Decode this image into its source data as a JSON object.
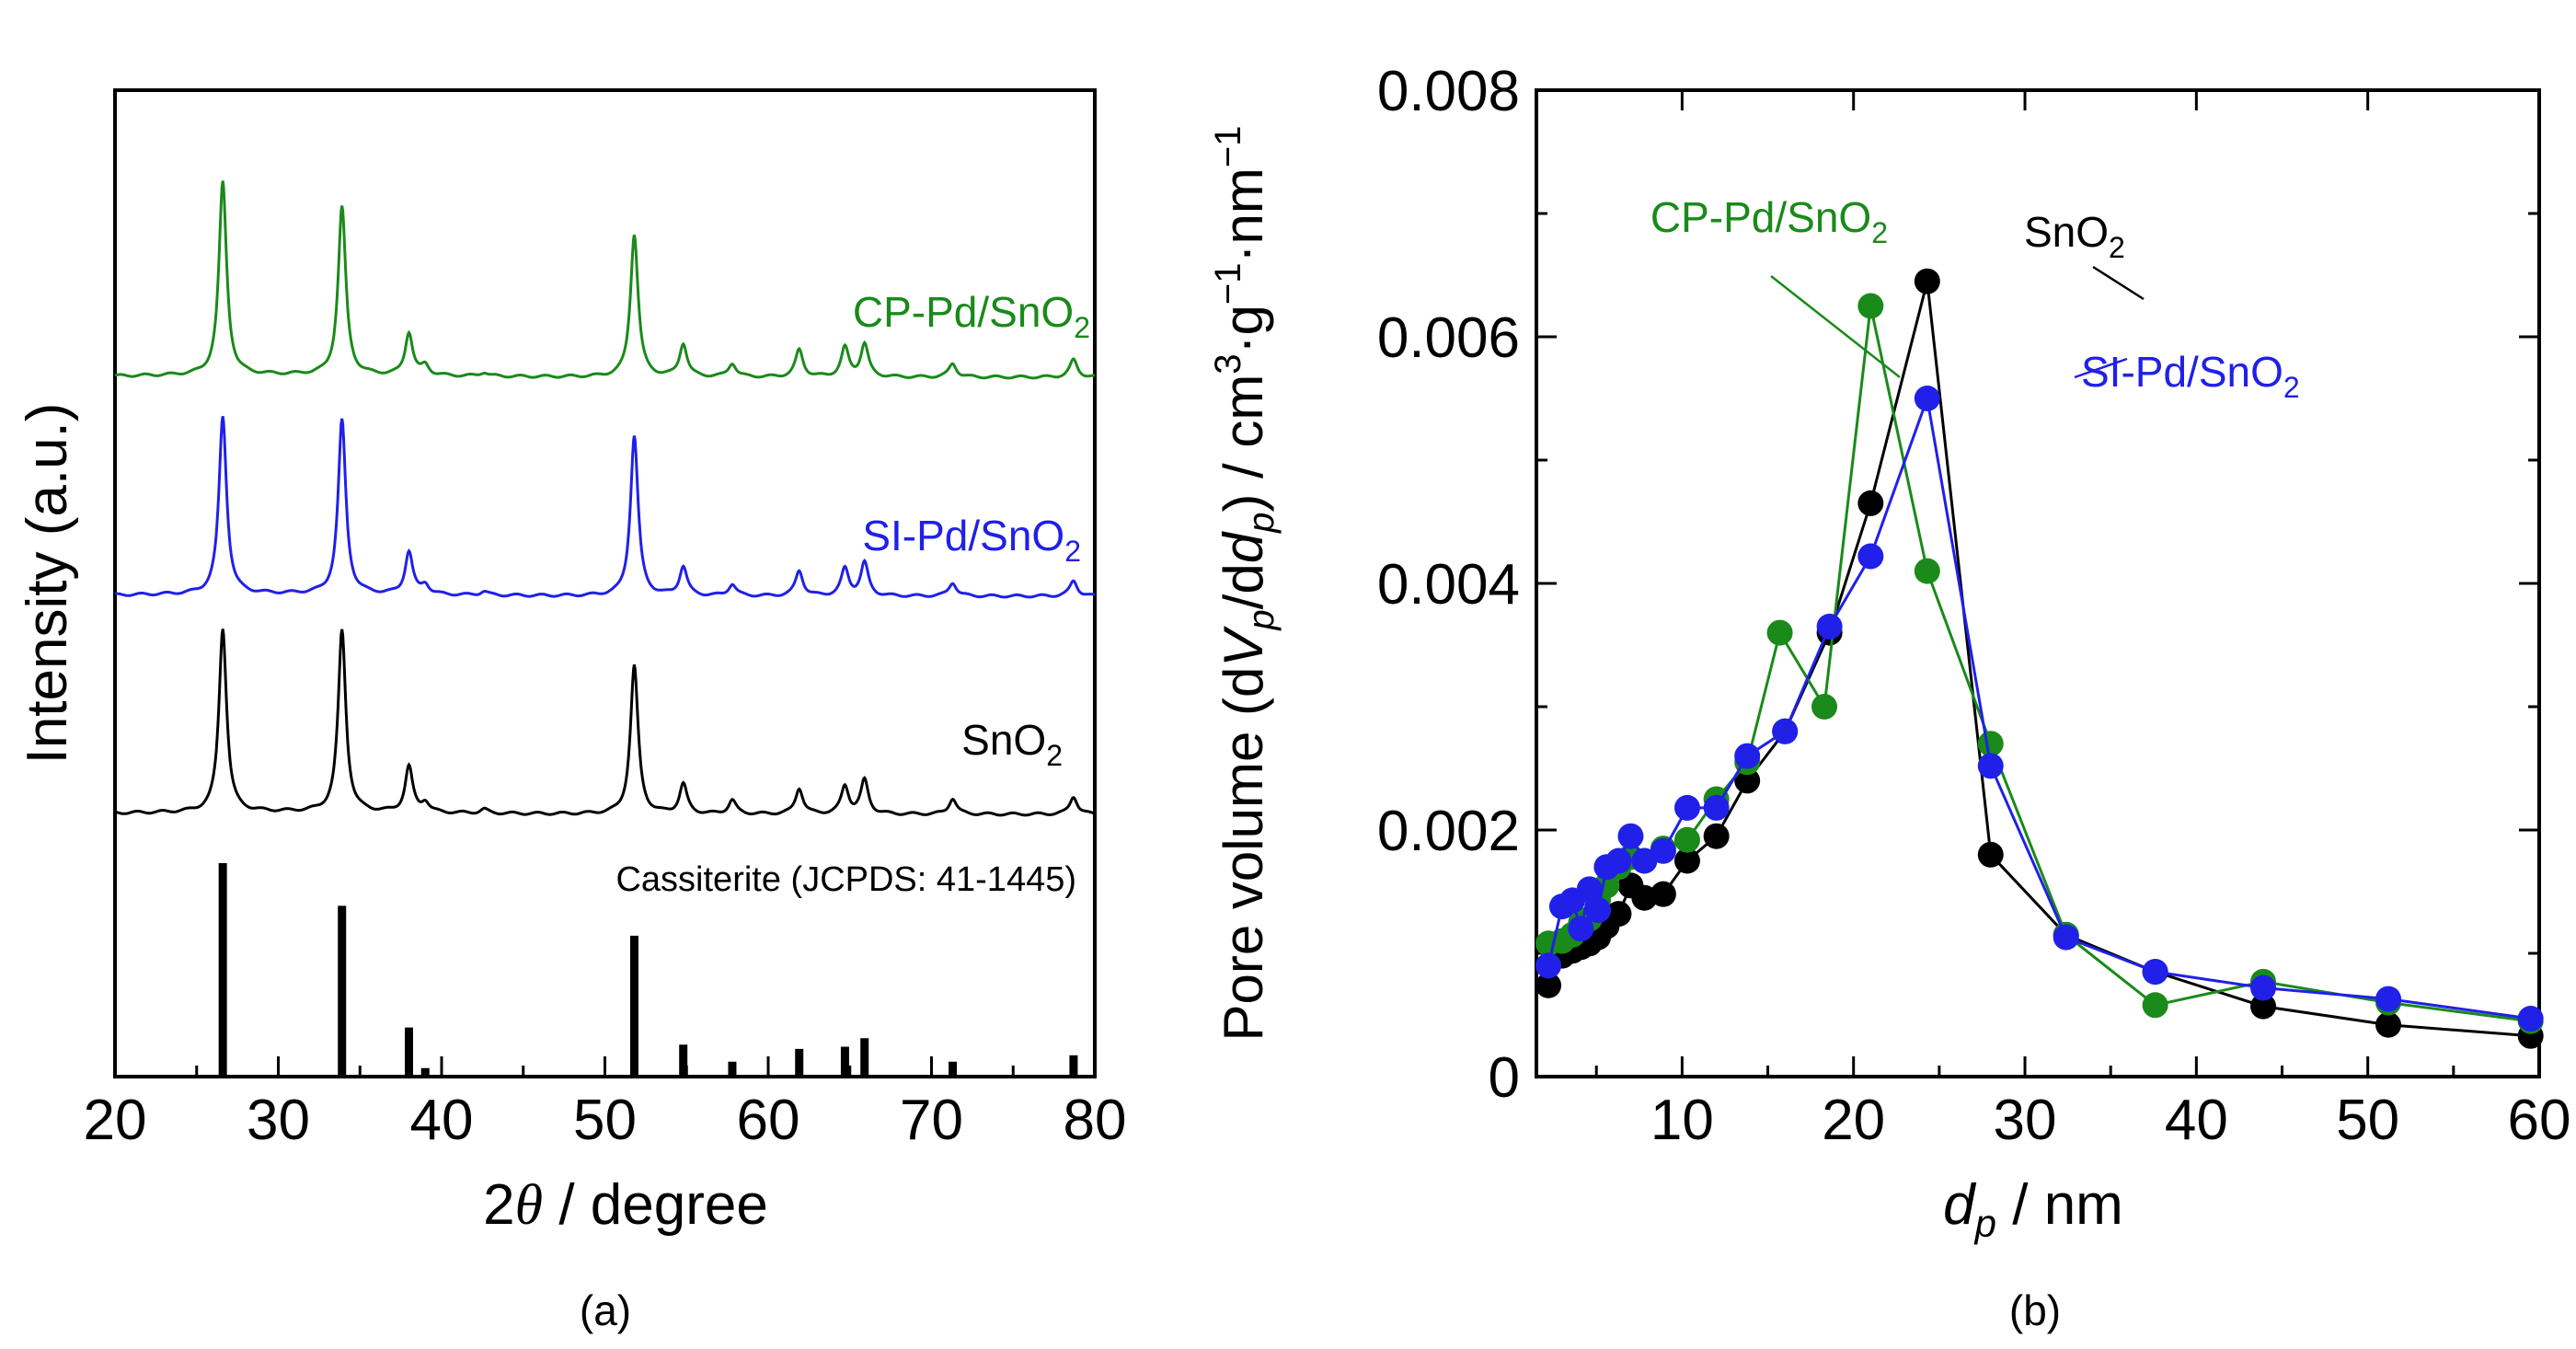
{
  "chart_data": [
    {
      "type": "line",
      "panel_label": "(a)",
      "xlabel_italic": "θ",
      "xlabel_prefix": "2",
      "xlabel_suffix": " / degree",
      "ylabel": "Intensity (a.u.)",
      "xlim": [
        20,
        80
      ],
      "x_ticks": [
        20,
        30,
        40,
        50,
        60,
        70,
        80
      ],
      "grid": false,
      "series": [
        {
          "label_main": "CP-Pd/SnO",
          "label_sub": "2",
          "color": "#1a8a1a",
          "peaks": [
            {
              "x": 26.6,
              "h": 1.0
            },
            {
              "x": 33.9,
              "h": 0.87
            },
            {
              "x": 38.0,
              "h": 0.22
            },
            {
              "x": 39.0,
              "h": 0.05
            },
            {
              "x": 42.6,
              "h": 0.02
            },
            {
              "x": 51.8,
              "h": 0.74
            },
            {
              "x": 54.8,
              "h": 0.17
            },
            {
              "x": 57.8,
              "h": 0.07
            },
            {
              "x": 61.9,
              "h": 0.14
            },
            {
              "x": 64.7,
              "h": 0.15
            },
            {
              "x": 65.9,
              "h": 0.17
            },
            {
              "x": 71.3,
              "h": 0.07
            },
            {
              "x": 78.7,
              "h": 0.09
            }
          ]
        },
        {
          "label_main": "SI-Pd/SnO",
          "label_sub": "2",
          "color": "#2020e8",
          "peaks": [
            {
              "x": 26.6,
              "h": 0.92
            },
            {
              "x": 33.9,
              "h": 0.9
            },
            {
              "x": 38.0,
              "h": 0.22
            },
            {
              "x": 39.0,
              "h": 0.05
            },
            {
              "x": 42.6,
              "h": 0.02
            },
            {
              "x": 51.8,
              "h": 0.83
            },
            {
              "x": 54.8,
              "h": 0.15
            },
            {
              "x": 57.8,
              "h": 0.06
            },
            {
              "x": 61.9,
              "h": 0.13
            },
            {
              "x": 64.7,
              "h": 0.14
            },
            {
              "x": 65.9,
              "h": 0.17
            },
            {
              "x": 71.3,
              "h": 0.07
            },
            {
              "x": 78.7,
              "h": 0.08
            }
          ]
        },
        {
          "label_main": "SnO",
          "label_sub": "2",
          "color": "#000000",
          "peaks": [
            {
              "x": 26.6,
              "h": 0.93
            },
            {
              "x": 33.9,
              "h": 0.92
            },
            {
              "x": 38.0,
              "h": 0.23
            },
            {
              "x": 39.0,
              "h": 0.05
            },
            {
              "x": 42.6,
              "h": 0.02
            },
            {
              "x": 51.8,
              "h": 0.75
            },
            {
              "x": 54.8,
              "h": 0.15
            },
            {
              "x": 57.8,
              "h": 0.07
            },
            {
              "x": 61.9,
              "h": 0.13
            },
            {
              "x": 64.7,
              "h": 0.14
            },
            {
              "x": 65.9,
              "h": 0.17
            },
            {
              "x": 71.3,
              "h": 0.08
            },
            {
              "x": 78.7,
              "h": 0.09
            }
          ]
        }
      ],
      "reference": {
        "label": "Cassiterite (JCPDS: 41-1445)",
        "color": "#000000",
        "sticks": [
          {
            "x": 26.6,
            "h": 1.0
          },
          {
            "x": 33.9,
            "h": 0.8
          },
          {
            "x": 38.0,
            "h": 0.23
          },
          {
            "x": 39.0,
            "h": 0.04
          },
          {
            "x": 51.8,
            "h": 0.66
          },
          {
            "x": 54.8,
            "h": 0.15
          },
          {
            "x": 57.8,
            "h": 0.07
          },
          {
            "x": 61.9,
            "h": 0.13
          },
          {
            "x": 64.7,
            "h": 0.14
          },
          {
            "x": 65.9,
            "h": 0.18
          },
          {
            "x": 71.3,
            "h": 0.07
          },
          {
            "x": 78.7,
            "h": 0.1
          }
        ]
      }
    },
    {
      "type": "line",
      "panel_label": "(b)",
      "xlabel_italic": "d",
      "xlabel_sub": "p",
      "xlabel_suffix": " / nm",
      "ylabel_text": "Pore volume (dV/dd) / cm³·g⁻¹·nm⁻¹",
      "xlim": [
        1.5,
        60
      ],
      "ylim": [
        0,
        0.008
      ],
      "x_ticks": [
        10,
        20,
        30,
        40,
        50,
        60
      ],
      "y_ticks": [
        "0",
        "0.002",
        "0.004",
        "0.006",
        "0.008"
      ],
      "y_tick_values": [
        0,
        0.002,
        0.004,
        0.006,
        0.008
      ],
      "grid": false,
      "series": [
        {
          "label_main": "SnO",
          "label_sub": "2",
          "color": "#000000",
          "x": [
            2.2,
            3.0,
            3.6,
            4.1,
            4.6,
            5.1,
            5.6,
            6.3,
            7.0,
            7.8,
            8.9,
            10.3,
            12.0,
            13.8,
            16.0,
            18.6,
            21.0,
            24.3,
            28.0,
            32.4,
            37.6,
            43.9,
            51.2,
            59.5
          ],
          "y": [
            0.00074,
            0.00098,
            0.00102,
            0.00105,
            0.00108,
            0.00113,
            0.00122,
            0.00132,
            0.00155,
            0.00145,
            0.00148,
            0.00175,
            0.00195,
            0.0024,
            0.0028,
            0.0036,
            0.00465,
            0.00645,
            0.0018,
            0.00115,
            0.00085,
            0.00057,
            0.00042,
            0.00033
          ]
        },
        {
          "label_main": "CP-Pd/SnO",
          "label_sub": "2",
          "color": "#1a8a1a",
          "x": [
            2.2,
            3.0,
            3.6,
            4.1,
            4.6,
            5.1,
            5.6,
            6.3,
            7.0,
            7.8,
            8.9,
            10.3,
            12.0,
            13.8,
            15.7,
            18.3,
            21.0,
            24.3,
            28.0,
            32.4,
            37.6,
            43.9,
            51.2,
            59.5
          ],
          "y": [
            0.00108,
            0.0011,
            0.00115,
            0.00125,
            0.00128,
            0.00143,
            0.00155,
            0.0017,
            0.00178,
            0.00175,
            0.00185,
            0.00192,
            0.00225,
            0.00255,
            0.0036,
            0.003,
            0.00625,
            0.0041,
            0.0027,
            0.00115,
            0.00058,
            0.00077,
            0.0006,
            0.00045
          ]
        },
        {
          "label_main": "SI-Pd/SnO",
          "label_sub": "2",
          "color": "#2020e8",
          "x": [
            2.2,
            3.0,
            3.6,
            4.1,
            4.6,
            5.1,
            5.6,
            6.3,
            7.0,
            7.8,
            8.9,
            10.3,
            12.0,
            13.8,
            16.0,
            18.6,
            21.0,
            24.3,
            28.0,
            32.4,
            37.6,
            43.9,
            51.2,
            59.5
          ],
          "y": [
            0.0009,
            0.00138,
            0.00143,
            0.0012,
            0.00152,
            0.00135,
            0.0017,
            0.00175,
            0.00195,
            0.00175,
            0.00183,
            0.00218,
            0.00218,
            0.0026,
            0.0028,
            0.00365,
            0.00422,
            0.0055,
            0.00252,
            0.00113,
            0.00085,
            0.00072,
            0.00063,
            0.00047
          ]
        }
      ]
    }
  ]
}
